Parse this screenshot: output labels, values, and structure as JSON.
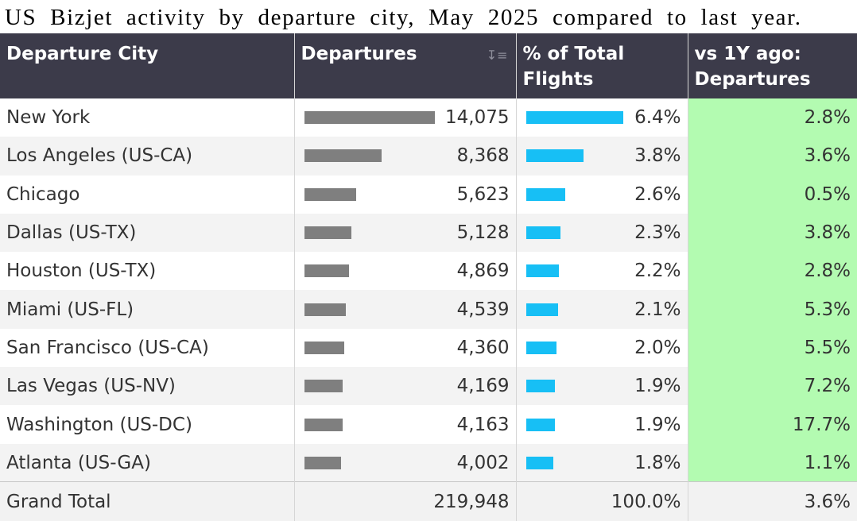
{
  "title": "US Bizjet activity by departure city, May 2025 compared to last year.",
  "columns": {
    "city": "Departure City",
    "departures": "Departures",
    "share": "% of Total Flights",
    "change": "vs 1Y ago: Departures"
  },
  "rows": [
    {
      "city": "New York",
      "departures": "14,075",
      "share": "6.4%",
      "change": "2.8%"
    },
    {
      "city": "Los Angeles (US-CA)",
      "departures": "8,368",
      "share": "3.8%",
      "change": "3.6%"
    },
    {
      "city": "Chicago",
      "departures": "5,623",
      "share": "2.6%",
      "change": "0.5%"
    },
    {
      "city": "Dallas (US-TX)",
      "departures": "5,128",
      "share": "2.3%",
      "change": "3.8%"
    },
    {
      "city": "Houston (US-TX)",
      "departures": "4,869",
      "share": "2.2%",
      "change": "2.8%"
    },
    {
      "city": "Miami (US-FL)",
      "departures": "4,539",
      "share": "2.1%",
      "change": "5.3%"
    },
    {
      "city": "San Francisco (US-CA)",
      "departures": "4,360",
      "share": "2.0%",
      "change": "5.5%"
    },
    {
      "city": "Las Vegas (US-NV)",
      "departures": "4,169",
      "share": "1.9%",
      "change": "7.2%"
    },
    {
      "city": "Washington (US-DC)",
      "departures": "4,163",
      "share": "1.9%",
      "change": "17.7%"
    },
    {
      "city": "Atlanta (US-GA)",
      "departures": "4,002",
      "share": "1.8%",
      "change": "1.1%"
    }
  ],
  "total": {
    "label": "Grand Total",
    "departures": "219,948",
    "share": "100.0%",
    "change": "3.6%"
  },
  "colors": {
    "header_bg": "#3c3b4a",
    "departures_bar": "#7f7f7f",
    "share_bar": "#17bff5",
    "change_bg": "#b3fbb1"
  },
  "icons": {
    "sort": "sort-descending-icon"
  },
  "chart_data": {
    "type": "table",
    "title": "US Bizjet activity by departure city, May 2025 compared to last year.",
    "categories": [
      "New York",
      "Los Angeles (US-CA)",
      "Chicago",
      "Dallas (US-TX)",
      "Houston (US-TX)",
      "Miami (US-FL)",
      "San Francisco (US-CA)",
      "Las Vegas (US-NV)",
      "Washington (US-DC)",
      "Atlanta (US-GA)"
    ],
    "series": [
      {
        "name": "Departures",
        "values": [
          14075,
          8368,
          5623,
          5128,
          4869,
          4539,
          4360,
          4169,
          4163,
          4002
        ]
      },
      {
        "name": "% of Total Flights",
        "values": [
          6.4,
          3.8,
          2.6,
          2.3,
          2.2,
          2.1,
          2.0,
          1.9,
          1.9,
          1.8
        ]
      },
      {
        "name": "vs 1Y ago: Departures",
        "values": [
          2.8,
          3.6,
          0.5,
          3.8,
          2.8,
          5.3,
          5.5,
          7.2,
          17.7,
          1.1
        ]
      }
    ],
    "total": {
      "departures": 219948,
      "share": 100.0,
      "change": 3.6
    }
  }
}
